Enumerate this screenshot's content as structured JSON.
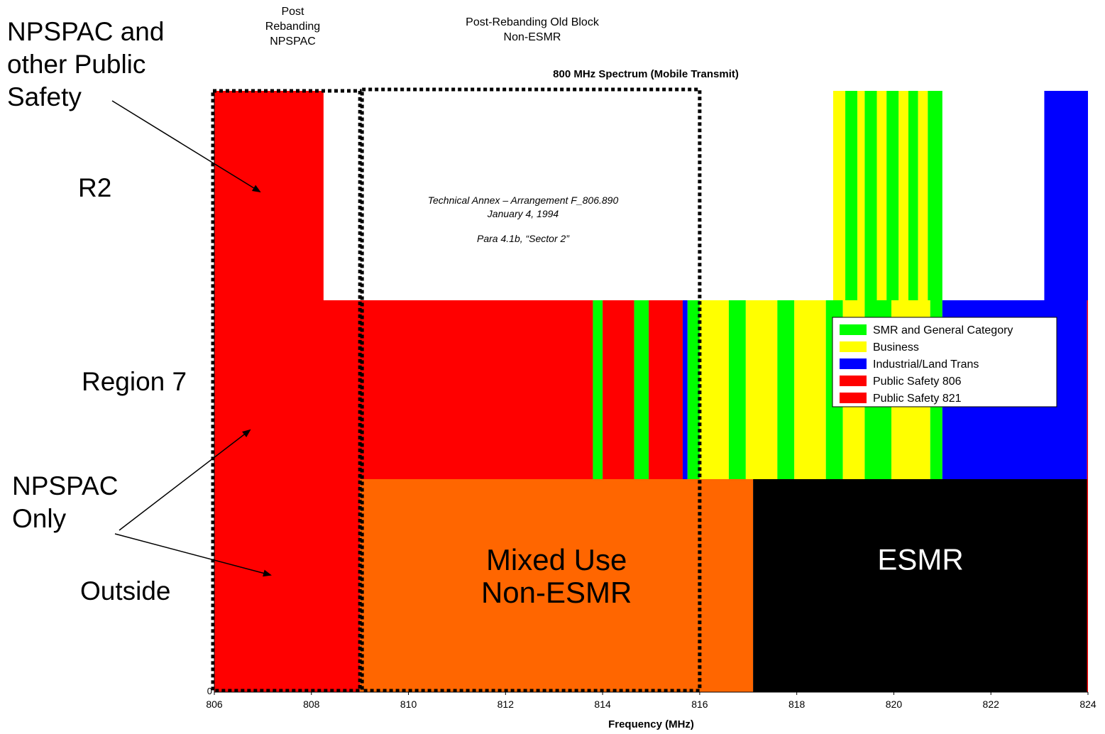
{
  "chart_data": {
    "type": "bar",
    "title": "800 MHz Spectrum (Mobile Transmit)",
    "xlabel": "Frequency (MHz)",
    "ylabel": "",
    "xlim": [
      806,
      824
    ],
    "xticks": [
      "806",
      "808",
      "810",
      "812",
      "814",
      "816",
      "818",
      "820",
      "822",
      "824"
    ],
    "yticks": [
      "0"
    ],
    "grid": false,
    "legend_position": "right",
    "legend": [
      {
        "label": "SMR and General Category",
        "color": "#00ff00"
      },
      {
        "label": "Business",
        "color": "#ffff00"
      },
      {
        "label": "Industrial/Land Trans",
        "color": "#0000ff"
      },
      {
        "label": "Public Safety 806",
        "color": "#ff0000"
      },
      {
        "label": "Public Safety 821",
        "color": "#ff0000"
      }
    ],
    "tiers": [
      {
        "label": "R2",
        "y_range": [
          3,
          4
        ],
        "segments": [
          {
            "x0": 806.0,
            "x1": 808.25,
            "category": "Public Safety 806"
          },
          {
            "x0": 818.75,
            "x1": 819.0,
            "category": "Business"
          },
          {
            "x0": 819.0,
            "x1": 819.25,
            "category": "SMR and General Category"
          },
          {
            "x0": 819.25,
            "x1": 819.4,
            "category": "Business"
          },
          {
            "x0": 819.4,
            "x1": 819.65,
            "category": "SMR and General Category"
          },
          {
            "x0": 819.65,
            "x1": 819.85,
            "category": "Business"
          },
          {
            "x0": 819.85,
            "x1": 820.1,
            "category": "SMR and General Category"
          },
          {
            "x0": 820.1,
            "x1": 820.3,
            "category": "Business"
          },
          {
            "x0": 820.3,
            "x1": 820.5,
            "category": "SMR and General Category"
          },
          {
            "x0": 820.5,
            "x1": 820.7,
            "category": "Business"
          },
          {
            "x0": 820.7,
            "x1": 821.0,
            "category": "SMR and General Category"
          },
          {
            "x0": 823.1,
            "x1": 824.0,
            "category": "Industrial/Land Trans"
          }
        ]
      },
      {
        "label": "Region 7",
        "y_range": [
          2,
          3
        ],
        "segments": [
          {
            "x0": 806.0,
            "x1": 813.8,
            "category": "Public Safety 806"
          },
          {
            "x0": 813.8,
            "x1": 814.0,
            "category": "SMR and General Category"
          },
          {
            "x0": 814.0,
            "x1": 814.65,
            "category": "Public Safety 806"
          },
          {
            "x0": 814.65,
            "x1": 814.95,
            "category": "SMR and General Category"
          },
          {
            "x0": 814.95,
            "x1": 815.65,
            "category": "Public Safety 806"
          },
          {
            "x0": 815.65,
            "x1": 815.75,
            "category": "Industrial/Land Trans"
          },
          {
            "x0": 815.75,
            "x1": 816.0,
            "category": "SMR and General Category"
          },
          {
            "x0": 816.0,
            "x1": 816.6,
            "category": "Business"
          },
          {
            "x0": 816.6,
            "x1": 816.95,
            "category": "SMR and General Category"
          },
          {
            "x0": 816.95,
            "x1": 817.6,
            "category": "Business"
          },
          {
            "x0": 817.6,
            "x1": 817.95,
            "category": "SMR and General Category"
          },
          {
            "x0": 817.95,
            "x1": 818.6,
            "category": "Business"
          },
          {
            "x0": 818.6,
            "x1": 818.95,
            "category": "SMR and General Category"
          },
          {
            "x0": 818.95,
            "x1": 819.4,
            "category": "Business"
          },
          {
            "x0": 819.4,
            "x1": 819.95,
            "category": "SMR and General Category"
          },
          {
            "x0": 819.95,
            "x1": 820.75,
            "category": "Business"
          },
          {
            "x0": 820.75,
            "x1": 821.0,
            "category": "SMR and General Category"
          },
          {
            "x0": 821.0,
            "x1": 823.98,
            "category": "Industrial/Land Trans"
          },
          {
            "x0": 823.98,
            "x1": 824.0,
            "category": "Public Safety 821"
          }
        ]
      },
      {
        "label": "Outside",
        "y_range": [
          0,
          2
        ],
        "segments": [
          {
            "x0": 806.0,
            "x1": 809.0,
            "category": "Public Safety 806",
            "span_y": [
              0,
              3
            ]
          },
          {
            "x0": 809.0,
            "x1": 817.1,
            "category": "Mixed Use Non-ESMR"
          },
          {
            "x0": 817.1,
            "x1": 824.0,
            "category": "ESMR"
          },
          {
            "x0": 823.98,
            "x1": 824.0,
            "category": "Public Safety 821"
          }
        ]
      }
    ],
    "block_colors": {
      "Mixed Use Non-ESMR": "#ff6600",
      "ESMR": "#000000"
    },
    "block_labels": [
      {
        "text": "Mixed Use\nNon-ESMR",
        "x": 813.05,
        "y": 1.0,
        "color": "#000000"
      },
      {
        "text": "ESMR",
        "x": 820.55,
        "y": 1.15,
        "color": "#ffffff"
      }
    ],
    "annotation_text": {
      "lines": [
        "Technical Annex – Arrangement F_806.890",
        "January 4, 1994",
        "Para 4.1b, “Sector 2”"
      ]
    },
    "dotted_boxes": [
      {
        "x0": 806.0,
        "x1": 809.0,
        "label": "Post\nRebanding\nNPSPAC"
      },
      {
        "x0": 809.0,
        "x1": 816.0,
        "label": "Post-Rebanding Old Block\nNon-ESMR"
      }
    ]
  },
  "side_labels": {
    "npspac_other": "NPSPAC and\nother Public\nSafety",
    "r2": "R2",
    "region7": "Region 7",
    "npspac_only": "NPSPAC\nOnly",
    "outside": "Outside"
  }
}
